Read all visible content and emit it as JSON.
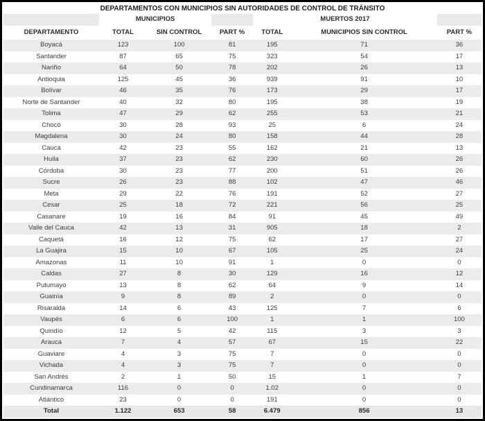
{
  "title": "DEPARTAMENTOS CON MUNICIPIOS SIN AUTORIDADES DE CONTROL DE TRÁNSITO",
  "table": {
    "group_headers": {
      "municipios": "MUNICIPIOS",
      "muertos": "MUERTOS 2017"
    },
    "columns": [
      "DEPARTAMENTO",
      "TOTAL",
      "SIN CONTROL",
      "PART %",
      "TOTAL",
      "MUNICIPIOS SIN CONTROL",
      "PART %"
    ],
    "rows": [
      [
        "Boyacá",
        "123",
        "100",
        "81",
        "195",
        "71",
        "36"
      ],
      [
        "Santander",
        "87",
        "65",
        "75",
        "323",
        "54",
        "17"
      ],
      [
        "Nariño",
        "64",
        "50",
        "78",
        "202",
        "26",
        "13"
      ],
      [
        "Antioquia",
        "125",
        "45",
        "36",
        "939",
        "91",
        "10"
      ],
      [
        "Bolívar",
        "46",
        "35",
        "76",
        "173",
        "29",
        "17"
      ],
      [
        "Norte de Santander",
        "40",
        "32",
        "80",
        "195",
        "38",
        "19"
      ],
      [
        "Tolima",
        "47",
        "29",
        "62",
        "255",
        "53",
        "21"
      ],
      [
        "Chocó",
        "30",
        "28",
        "93",
        "25",
        "6",
        "24"
      ],
      [
        "Magdalena",
        "30",
        "24",
        "80",
        "158",
        "44",
        "28"
      ],
      [
        "Cauca",
        "42",
        "23",
        "55",
        "162",
        "21",
        "13"
      ],
      [
        "Huila",
        "37",
        "23",
        "62",
        "230",
        "60",
        "26"
      ],
      [
        "Córdoba",
        "30",
        "23",
        "77",
        "200",
        "51",
        "26"
      ],
      [
        "Sucre",
        "26",
        "23",
        "88",
        "102",
        "47",
        "46"
      ],
      [
        "Meta",
        "29",
        "22",
        "76",
        "191",
        "52",
        "27"
      ],
      [
        "Cesar",
        "25",
        "18",
        "72",
        "221",
        "56",
        "25"
      ],
      [
        "Casanare",
        "19",
        "16",
        "84",
        "91",
        "45",
        "49"
      ],
      [
        "Valle del Cauca",
        "42",
        "13",
        "31",
        "905",
        "18",
        "2"
      ],
      [
        "Caquetá",
        "16",
        "12",
        "75",
        "62",
        "17",
        "27"
      ],
      [
        "La Guajira",
        "15",
        "10",
        "67",
        "105",
        "25",
        "24"
      ],
      [
        "Amazonas",
        "11",
        "10",
        "91",
        "1",
        "0",
        "0"
      ],
      [
        "Caldas",
        "27",
        "8",
        "30",
        "129",
        "16",
        "12"
      ],
      [
        "Putumayo",
        "13",
        "8",
        "62",
        "64",
        "9",
        "14"
      ],
      [
        "Guainía",
        "9",
        "8",
        "89",
        "2",
        "0",
        "0"
      ],
      [
        "Risaralda",
        "14",
        "6",
        "43",
        "125",
        "7",
        "6"
      ],
      [
        "Vaupés",
        "6",
        "6",
        "100",
        "1",
        "1",
        "100"
      ],
      [
        "Quindío",
        "12",
        "5",
        "42",
        "115",
        "3",
        "3"
      ],
      [
        "Arauca",
        "7",
        "4",
        "57",
        "67",
        "15",
        "22"
      ],
      [
        "Guaviare",
        "4",
        "3",
        "75",
        "7",
        "0",
        "0"
      ],
      [
        "Vichada",
        "4",
        "3",
        "75",
        "7",
        "0",
        "0"
      ],
      [
        "San Andrés",
        "2",
        "1",
        "50",
        "15",
        "1",
        "7"
      ],
      [
        "Cundinamarca",
        "116",
        "0",
        "0",
        "1.02",
        "0",
        "0"
      ],
      [
        "Atlántico",
        "23",
        "0",
        "0",
        "191",
        "0",
        "0"
      ]
    ],
    "total_row": [
      "Total",
      "1.122",
      "653",
      "58",
      "6.479",
      "856",
      "13"
    ]
  },
  "colors": {
    "row_alt": "#ebebeb",
    "total_row_bg": "#e8e8e8",
    "group_cell_bg": "#e9e9e9",
    "border": "#000000",
    "text": "#3d3d3d"
  }
}
